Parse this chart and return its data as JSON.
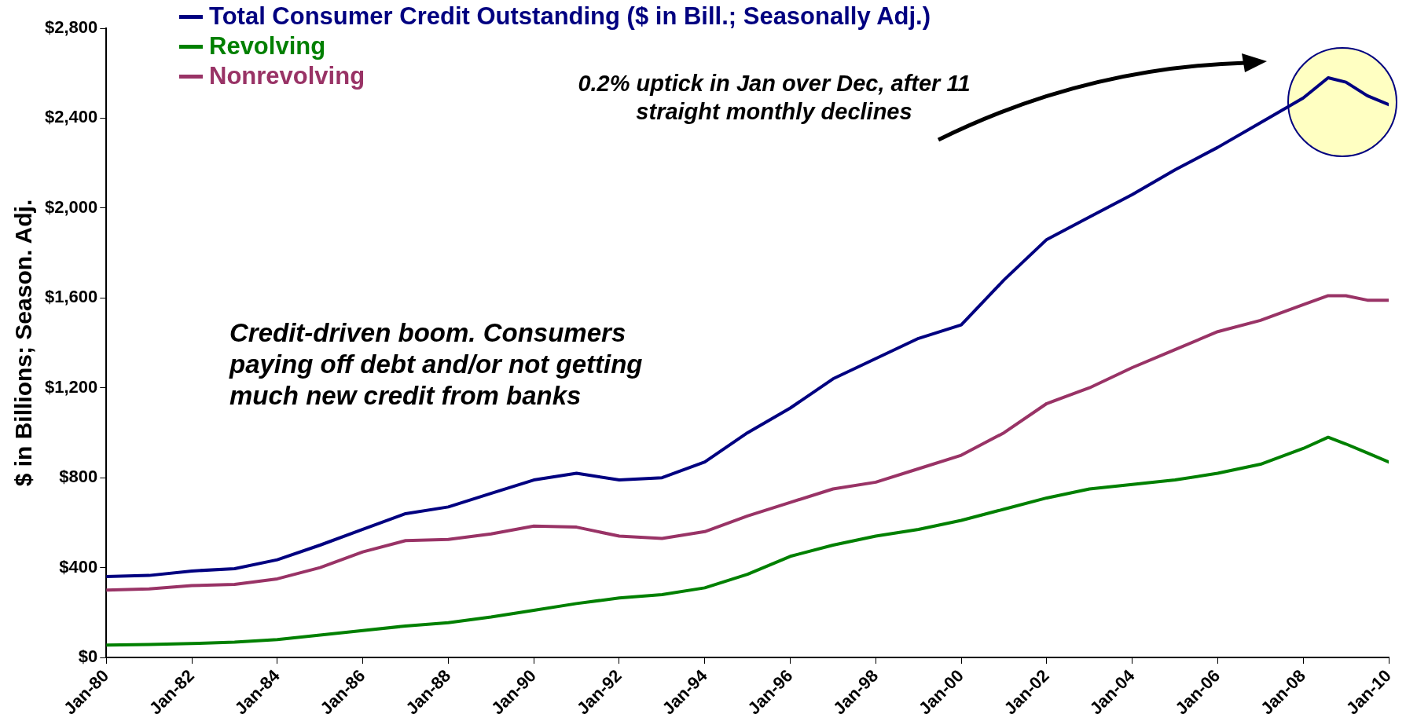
{
  "chart_data": {
    "type": "line",
    "ylabel": "$ in Billions; Season. Adj.",
    "x": [
      "1980-01",
      "1981-01",
      "1982-01",
      "1983-01",
      "1984-01",
      "1985-01",
      "1986-01",
      "1987-01",
      "1988-01",
      "1989-01",
      "1990-01",
      "1991-01",
      "1992-01",
      "1993-01",
      "1994-01",
      "1995-01",
      "1996-01",
      "1997-01",
      "1998-01",
      "1999-01",
      "2000-01",
      "2001-01",
      "2002-01",
      "2003-01",
      "2004-01",
      "2005-01",
      "2006-01",
      "2007-01",
      "2008-01",
      "2008-08",
      "2009-01",
      "2009-07",
      "2010-01"
    ],
    "series": [
      {
        "name": "Total Consumer Credit Outstanding ($ in Bill.; Seasonally Adj.)",
        "color": "#000080",
        "values": [
          360,
          365,
          385,
          395,
          435,
          500,
          570,
          640,
          670,
          730,
          790,
          820,
          790,
          800,
          870,
          1000,
          1110,
          1240,
          1330,
          1420,
          1480,
          1680,
          1860,
          1960,
          2060,
          2170,
          2270,
          2380,
          2490,
          2580,
          2560,
          2500,
          2460
        ]
      },
      {
        "name": "Revolving",
        "color": "#008000",
        "values": [
          55,
          58,
          62,
          68,
          80,
          100,
          120,
          140,
          155,
          180,
          210,
          240,
          265,
          280,
          310,
          370,
          450,
          500,
          540,
          570,
          610,
          660,
          710,
          750,
          770,
          790,
          820,
          860,
          930,
          980,
          950,
          910,
          870
        ]
      },
      {
        "name": "Nonrevolving",
        "color": "#993366",
        "values": [
          300,
          305,
          320,
          325,
          350,
          400,
          470,
          520,
          525,
          550,
          585,
          580,
          540,
          530,
          560,
          630,
          690,
          750,
          780,
          840,
          900,
          1000,
          1130,
          1200,
          1290,
          1370,
          1450,
          1500,
          1570,
          1610,
          1610,
          1590,
          1590
        ]
      }
    ],
    "xlim": [
      "1980-01",
      "2010-01"
    ],
    "xticks": [
      {
        "value": "1980-01",
        "label": "Jan-80"
      },
      {
        "value": "1982-01",
        "label": "Jan-82"
      },
      {
        "value": "1984-01",
        "label": "Jan-84"
      },
      {
        "value": "1986-01",
        "label": "Jan-86"
      },
      {
        "value": "1988-01",
        "label": "Jan-88"
      },
      {
        "value": "1990-01",
        "label": "Jan-90"
      },
      {
        "value": "1992-01",
        "label": "Jan-92"
      },
      {
        "value": "1994-01",
        "label": "Jan-94"
      },
      {
        "value": "1996-01",
        "label": "Jan-96"
      },
      {
        "value": "1998-01",
        "label": "Jan-98"
      },
      {
        "value": "2000-01",
        "label": "Jan-00"
      },
      {
        "value": "2002-01",
        "label": "Jan-02"
      },
      {
        "value": "2004-01",
        "label": "Jan-04"
      },
      {
        "value": "2006-01",
        "label": "Jan-06"
      },
      {
        "value": "2008-01",
        "label": "Jan-08"
      },
      {
        "value": "2010-01",
        "label": "Jan-10"
      }
    ],
    "ylim": [
      0,
      2800
    ],
    "yticks": [
      {
        "value": 0,
        "label": "$0"
      },
      {
        "value": 400,
        "label": "$400"
      },
      {
        "value": 800,
        "label": "$800"
      },
      {
        "value": 1200,
        "label": "$1,200"
      },
      {
        "value": 1600,
        "label": "$1,600"
      },
      {
        "value": 2000,
        "label": "$2,000"
      },
      {
        "value": 2400,
        "label": "$2,400"
      },
      {
        "value": 2800,
        "label": "$2,800"
      }
    ],
    "grid": false,
    "legend": "top left",
    "marker": "none",
    "line_style": "solid",
    "annotations": [
      "0.2% uptick in Jan over Dec, after 11 straight monthly declines",
      "Credit-driven boom. Consumers paying off debt and/or not getting much new credit from banks"
    ]
  }
}
